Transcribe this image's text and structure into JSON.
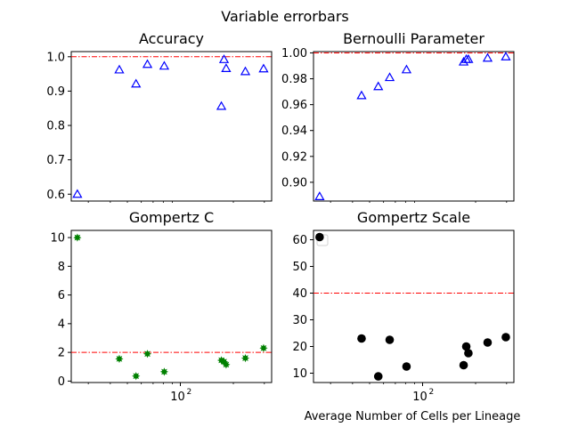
{
  "figure": {
    "suptitle": "Variable errorbars"
  },
  "chart_data": [
    {
      "id": "accuracy",
      "type": "scatter",
      "title": "Accuracy",
      "xscale": "log",
      "xlim": [
        24,
        330
      ],
      "ylim": [
        0.58,
        1.015
      ],
      "yticks": [
        0.6,
        0.7,
        0.8,
        0.9,
        1.0
      ],
      "yticklabels": [
        "0.6",
        "0.7",
        "0.8",
        "0.9",
        "1.0"
      ],
      "xticks": [],
      "xticklabels": [],
      "marker": "triangle-open",
      "color": "#0000ff",
      "refline": {
        "y": 1.0,
        "color": "#ff0000",
        "style": "dash-dot"
      },
      "x": [
        26,
        45,
        56,
        65,
        81,
        171,
        177,
        182,
        234,
        297
      ],
      "y": [
        0.6,
        0.962,
        0.921,
        0.978,
        0.973,
        0.856,
        0.992,
        0.966,
        0.957,
        0.965
      ]
    },
    {
      "id": "bernoulli",
      "type": "scatter",
      "title": "Bernoulli Parameter",
      "xscale": "log",
      "xlim": [
        24,
        330
      ],
      "ylim": [
        0.8855,
        1.001
      ],
      "yticks": [
        0.9,
        0.92,
        0.94,
        0.96,
        0.98,
        1.0
      ],
      "yticklabels": [
        "0.90",
        "0.92",
        "0.94",
        "0.96",
        "0.98",
        "1.00"
      ],
      "xticks": [],
      "xticklabels": [],
      "marker": "triangle-open",
      "color": "#0000ff",
      "refline": {
        "y": 1.0,
        "color": "#ff0000",
        "style": "dash-dot"
      },
      "x": [
        26,
        45,
        56,
        65,
        81,
        171,
        177,
        182,
        234,
        297
      ],
      "y": [
        0.889,
        0.967,
        0.974,
        0.981,
        0.987,
        0.993,
        0.995,
        0.995,
        0.996,
        0.997
      ]
    },
    {
      "id": "gompertz-c",
      "type": "scatter",
      "title": "Gompertz C",
      "xscale": "log",
      "xlim": [
        24,
        330
      ],
      "ylim": [
        -0.1,
        10.5
      ],
      "yticks": [
        0,
        2,
        4,
        6,
        8,
        10
      ],
      "yticklabels": [
        "0",
        "2",
        "4",
        "6",
        "8",
        "10"
      ],
      "xticks": [
        100
      ],
      "xticklabels": [
        "10",
        "2"
      ],
      "marker": "star-filled",
      "color": "#008000",
      "refline": {
        "y": 2.0,
        "color": "#ff0000",
        "style": "dash-dot"
      },
      "x": [
        26,
        45,
        56,
        65,
        81,
        171,
        177,
        182,
        234,
        297
      ],
      "y": [
        10.0,
        1.55,
        0.35,
        1.9,
        0.65,
        1.45,
        1.35,
        1.15,
        1.6,
        2.3
      ]
    },
    {
      "id": "gompertz-scale",
      "type": "scatter",
      "title": "Gompertz Scale",
      "xscale": "log",
      "xlim": [
        24,
        330
      ],
      "ylim": [
        6.5,
        63.5
      ],
      "yticks": [
        10,
        20,
        30,
        40,
        50,
        60
      ],
      "yticklabels": [
        "10",
        "20",
        "30",
        "40",
        "50",
        "60"
      ],
      "xticks": [
        100
      ],
      "xticklabels": [
        "10",
        "2"
      ],
      "xlabel": "Average Number of Cells per Lineage",
      "marker": "circle-filled",
      "color": "#000000",
      "refline": {
        "y": 40.0,
        "color": "#ff0000",
        "style": "dash-dot"
      },
      "legend": "top-left",
      "x": [
        26,
        45,
        56,
        65,
        81,
        171,
        177,
        182,
        234,
        297
      ],
      "y": [
        61.0,
        23.0,
        8.8,
        22.5,
        12.5,
        13.0,
        20.0,
        17.5,
        21.5,
        23.5
      ]
    }
  ]
}
